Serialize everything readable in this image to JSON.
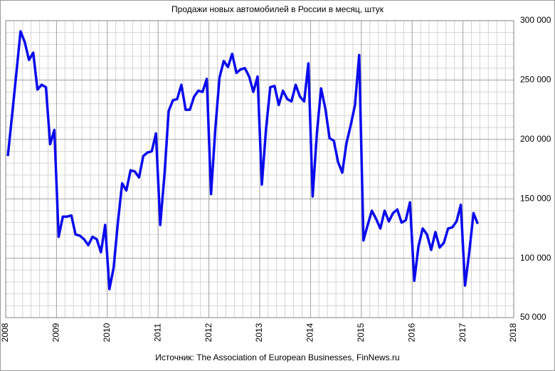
{
  "chart_data": {
    "type": "line",
    "title": "Продажи новых автомобилей в России в месяц, штук",
    "source": "Источник: The Association of European Businesses, FinNews.ru",
    "x": [
      2008.042,
      2008.125,
      2008.208,
      2008.292,
      2008.375,
      2008.458,
      2008.542,
      2008.625,
      2008.708,
      2008.792,
      2008.875,
      2008.958,
      2009.042,
      2009.125,
      2009.208,
      2009.292,
      2009.375,
      2009.458,
      2009.542,
      2009.625,
      2009.708,
      2009.792,
      2009.875,
      2009.958,
      2010.042,
      2010.125,
      2010.208,
      2010.292,
      2010.375,
      2010.458,
      2010.542,
      2010.625,
      2010.708,
      2010.792,
      2010.875,
      2010.958,
      2011.042,
      2011.125,
      2011.208,
      2011.292,
      2011.375,
      2011.458,
      2011.542,
      2011.625,
      2011.708,
      2011.792,
      2011.875,
      2011.958,
      2012.042,
      2012.125,
      2012.208,
      2012.292,
      2012.375,
      2012.458,
      2012.542,
      2012.625,
      2012.708,
      2012.792,
      2012.875,
      2012.958,
      2013.042,
      2013.125,
      2013.208,
      2013.292,
      2013.375,
      2013.458,
      2013.542,
      2013.625,
      2013.708,
      2013.792,
      2013.875,
      2013.958,
      2014.042,
      2014.125,
      2014.208,
      2014.292,
      2014.375,
      2014.458,
      2014.542,
      2014.625,
      2014.708,
      2014.792,
      2014.875,
      2014.958,
      2015.042,
      2015.125,
      2015.208,
      2015.292,
      2015.375,
      2015.458,
      2015.542,
      2015.625,
      2015.708,
      2015.792,
      2015.875,
      2015.958,
      2016.042,
      2016.125,
      2016.208,
      2016.292,
      2016.375,
      2016.458,
      2016.542,
      2016.625,
      2016.708,
      2016.792,
      2016.875,
      2016.958,
      2017.042,
      2017.125,
      2017.208,
      2017.292
    ],
    "series": [
      {
        "color": "#0a0aee",
        "values": [
          186000,
          220000,
          255000,
          291000,
          282000,
          267000,
          273000,
          242000,
          246000,
          244000,
          196000,
          208000,
          118000,
          135000,
          135000,
          136000,
          120000,
          119000,
          116000,
          111000,
          118000,
          116000,
          105000,
          128000,
          74000,
          92000,
          130000,
          163000,
          157000,
          174000,
          173000,
          168000,
          186000,
          189000,
          190000,
          205000,
          128000,
          170000,
          224000,
          233000,
          234000,
          246000,
          225000,
          225000,
          236000,
          241000,
          240000,
          251000,
          154000,
          208000,
          252000,
          266000,
          261000,
          272000,
          256000,
          259000,
          260000,
          253000,
          240000,
          253000,
          162000,
          209000,
          244000,
          245000,
          229000,
          241000,
          234000,
          232000,
          246000,
          236000,
          232000,
          264000,
          152000,
          205000,
          243000,
          226000,
          201000,
          199000,
          181000,
          172000,
          197000,
          212000,
          229000,
          271000,
          115000,
          128000,
          140000,
          133000,
          125000,
          140000,
          131000,
          138000,
          141000,
          130000,
          132000,
          147000,
          81000,
          110000,
          125000,
          120000,
          107000,
          122000,
          109000,
          113000,
          125000,
          126000,
          131000,
          145000,
          77000,
          105000,
          138000,
          129000
        ]
      }
    ],
    "xlim": [
      2008,
      2018
    ],
    "xticks": [
      2008,
      2009,
      2010,
      2011,
      2012,
      2013,
      2014,
      2015,
      2016,
      2017,
      2018
    ],
    "ylim": [
      50000,
      300000
    ],
    "yticks": [
      {
        "value": 50000,
        "label": "50 000"
      },
      {
        "value": 100000,
        "label": "100 000"
      },
      {
        "value": 150000,
        "label": "150 000"
      },
      {
        "value": 200000,
        "label": "200 000"
      },
      {
        "value": 250000,
        "label": "250 000"
      },
      {
        "value": 300000,
        "label": "300 000"
      }
    ],
    "grid": true
  }
}
